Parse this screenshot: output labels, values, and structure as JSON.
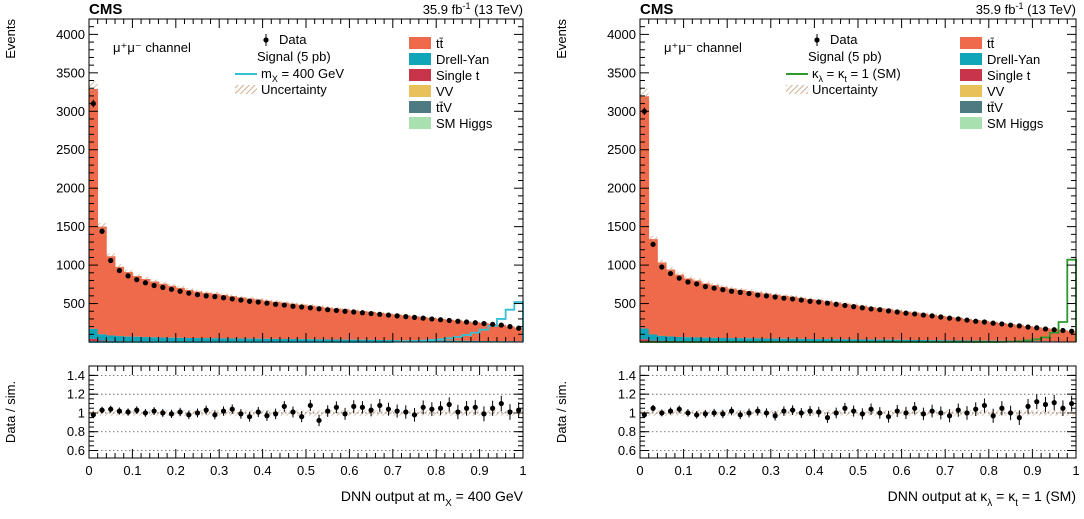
{
  "chart_data": [
    {
      "type": "bar",
      "subtype": "stacked-histogram-with-data-points-and-ratio-panel",
      "experiment": "CMS",
      "luminosity": "35.9 fb",
      "luminosity_sup": "-1",
      "energy": "(13 TeV)",
      "channel": "μ⁺μ⁻ channel",
      "ylabel": "Events",
      "ratio_ylabel": "Data / sim.",
      "xlabel": "DNN output at m",
      "xlabel_sub": "X",
      "xlabel_rest": " = 400 GeV",
      "xlim": [
        0,
        1
      ],
      "ylim": [
        0,
        4200
      ],
      "ratio_ylim": [
        0.52,
        1.5
      ],
      "y_ticks": [
        500,
        1000,
        1500,
        2000,
        2500,
        3000,
        3500,
        4000
      ],
      "ratio_ticks": [
        "0.6",
        "0.8",
        "1",
        "1.2",
        "1.4"
      ],
      "x_ticks": [
        "0",
        "0.1",
        "0.2",
        "0.3",
        "0.4",
        "0.5",
        "0.6",
        "0.7",
        "0.8",
        "0.9",
        "1"
      ],
      "legend": {
        "data": "Data",
        "signal_title": "Signal (5 pb)",
        "signal_label": "m",
        "signal_sub": "X",
        "signal_rest": " = 400 GeV",
        "uncertainty": "Uncertainty",
        "processes": [
          "tt̄",
          "Drell-Yan",
          "Single t",
          "VV",
          "tt̄V",
          "SM Higgs"
        ]
      },
      "colors": {
        "ttbar": "#ee6a4a",
        "dy": "#10a5b8",
        "single_t": "#c8354a",
        "vv": "#e8c15a",
        "ttv": "#4e7a82",
        "higgs": "#a8e0b0",
        "signal": "#36c0d4",
        "uncertainty": "#c79a74"
      },
      "bins": 50,
      "data_values": [
        3100,
        1440,
        1060,
        930,
        860,
        810,
        770,
        735,
        710,
        685,
        660,
        635,
        615,
        600,
        590,
        575,
        560,
        545,
        530,
        520,
        505,
        490,
        480,
        465,
        455,
        445,
        432,
        420,
        410,
        400,
        390,
        380,
        370,
        360,
        350,
        340,
        330,
        320,
        310,
        300,
        290,
        280,
        270,
        260,
        250,
        240,
        230,
        220,
        200,
        180
      ],
      "ttbar_values": [
        3120,
        1400,
        1030,
        900,
        840,
        790,
        755,
        725,
        700,
        675,
        650,
        625,
        605,
        590,
        580,
        565,
        550,
        535,
        522,
        510,
        497,
        484,
        472,
        460,
        448,
        437,
        425,
        413,
        403,
        392,
        382,
        372,
        362,
        352,
        342,
        332,
        322,
        312,
        302,
        292,
        282,
        272,
        262,
        252,
        242,
        232,
        222,
        212,
        192,
        172
      ],
      "dy_values": [
        130,
        80,
        70,
        65,
        60,
        58,
        55,
        52,
        50,
        48,
        46,
        45,
        44,
        43,
        42,
        41,
        40,
        39,
        38,
        37,
        36,
        35,
        34,
        33,
        32,
        31,
        30,
        29,
        28,
        27,
        26,
        25,
        24,
        23,
        22,
        21,
        20,
        19,
        18,
        17,
        16,
        15,
        14,
        13,
        12,
        11,
        10,
        9,
        8,
        7
      ],
      "other_values": [
        40,
        20,
        15,
        12,
        10,
        10,
        9,
        9,
        8,
        8,
        8,
        7,
        7,
        7,
        7,
        6,
        6,
        6,
        6,
        6,
        5,
        5,
        5,
        5,
        5,
        5,
        4,
        4,
        4,
        4,
        4,
        4,
        4,
        3,
        3,
        3,
        3,
        3,
        3,
        3,
        3,
        3,
        3,
        2,
        2,
        2,
        2,
        2,
        2,
        2
      ],
      "signal_values": [
        0,
        0,
        0,
        0,
        0,
        0,
        0,
        0,
        0,
        0,
        0,
        0,
        0,
        0,
        0,
        0,
        0,
        0,
        0,
        0,
        0,
        0,
        0,
        0,
        0,
        0,
        0,
        0,
        0,
        0,
        0,
        0,
        0,
        0,
        0,
        5,
        8,
        12,
        18,
        25,
        35,
        48,
        65,
        90,
        120,
        160,
        210,
        300,
        420,
        520
      ],
      "ratio_values": [
        0.98,
        1.03,
        1.04,
        1.02,
        1.01,
        1.03,
        1.0,
        1.02,
        1.0,
        0.99,
        1.01,
        0.98,
        1.0,
        1.03,
        0.98,
        1.02,
        1.04,
        0.99,
        0.96,
        1.01,
        0.97,
        0.99,
        1.07,
        1.01,
        0.96,
        1.08,
        0.92,
        1.02,
        1.06,
        0.99,
        1.07,
        1.06,
        1.03,
        1.08,
        1.04,
        1.02,
        1.01,
        0.98,
        1.06,
        1.04,
        1.05,
        1.09,
        1.01,
        1.05,
        1.06,
        0.99,
        1.05,
        1.1,
        1.01,
        1.03
      ]
    },
    {
      "type": "bar",
      "subtype": "stacked-histogram-with-data-points-and-ratio-panel",
      "experiment": "CMS",
      "luminosity": "35.9 fb",
      "luminosity_sup": "-1",
      "energy": "(13 TeV)",
      "channel": "μ⁺μ⁻ channel",
      "ylabel": "Events",
      "ratio_ylabel": "Data / sim.",
      "xlabel": "DNN output at κ",
      "xlabel_sub": "λ",
      "xlabel_rest": " = κ",
      "xlabel_sub2": "t",
      "xlabel_end": " = 1 (SM)",
      "xlim": [
        0,
        1
      ],
      "ylim": [
        0,
        4200
      ],
      "ratio_ylim": [
        0.52,
        1.5
      ],
      "y_ticks": [
        500,
        1000,
        1500,
        2000,
        2500,
        3000,
        3500,
        4000
      ],
      "ratio_ticks": [
        "0.6",
        "0.8",
        "1",
        "1.2",
        "1.4"
      ],
      "x_ticks": [
        "0",
        "0.1",
        "0.2",
        "0.3",
        "0.4",
        "0.5",
        "0.6",
        "0.7",
        "0.8",
        "0.9",
        "1"
      ],
      "legend": {
        "data": "Data",
        "signal_title": "Signal (5 pb)",
        "signal_label": "κ",
        "signal_sub": "λ",
        "signal_rest": " = κ",
        "signal_sub2": "t",
        "signal_end": " = 1 (SM)",
        "uncertainty": "Uncertainty",
        "processes": [
          "tt̄",
          "Drell-Yan",
          "Single t",
          "VV",
          "tt̄V",
          "SM Higgs"
        ]
      },
      "colors": {
        "ttbar": "#ee6a4a",
        "dy": "#10a5b8",
        "single_t": "#c8354a",
        "vv": "#e8c15a",
        "ttv": "#4e7a82",
        "higgs": "#a8e0b0",
        "signal": "#2e9a2e",
        "uncertainty": "#c79a74"
      },
      "bins": 50,
      "data_values": [
        3000,
        1270,
        975,
        890,
        830,
        780,
        755,
        720,
        700,
        680,
        660,
        645,
        630,
        610,
        600,
        585,
        570,
        560,
        545,
        530,
        520,
        505,
        490,
        475,
        460,
        445,
        430,
        420,
        405,
        390,
        375,
        365,
        350,
        340,
        325,
        310,
        300,
        285,
        270,
        260,
        245,
        235,
        220,
        210,
        195,
        185,
        170,
        160,
        150,
        140
      ],
      "ttbar_values": [
        3020,
        1240,
        955,
        870,
        810,
        765,
        740,
        705,
        685,
        665,
        645,
        630,
        615,
        597,
        586,
        572,
        558,
        547,
        533,
        518,
        507,
        493,
        478,
        464,
        450,
        436,
        422,
        410,
        396,
        382,
        368,
        357,
        344,
        332,
        319,
        305,
        293,
        280,
        267,
        255,
        242,
        230,
        218,
        206,
        194,
        182,
        170,
        158,
        146,
        134
      ],
      "dy_values": [
        140,
        80,
        65,
        60,
        55,
        52,
        50,
        48,
        46,
        44,
        43,
        42,
        41,
        40,
        39,
        38,
        37,
        36,
        35,
        34,
        33,
        32,
        31,
        30,
        29,
        28,
        27,
        26,
        25,
        24,
        23,
        22,
        21,
        20,
        19,
        18,
        17,
        16,
        15,
        14,
        13,
        12,
        11,
        10,
        9,
        8,
        7,
        6,
        5,
        4
      ],
      "other_values": [
        35,
        18,
        14,
        12,
        10,
        9,
        9,
        8,
        8,
        8,
        7,
        7,
        7,
        7,
        6,
        6,
        6,
        6,
        6,
        5,
        5,
        5,
        5,
        5,
        5,
        5,
        4,
        4,
        4,
        4,
        4,
        4,
        4,
        3,
        3,
        3,
        3,
        3,
        3,
        3,
        3,
        3,
        3,
        2,
        2,
        2,
        2,
        2,
        2,
        2
      ],
      "signal_values": [
        0,
        0,
        0,
        0,
        0,
        0,
        0,
        0,
        0,
        0,
        0,
        0,
        0,
        0,
        0,
        0,
        0,
        0,
        0,
        0,
        0,
        0,
        0,
        0,
        0,
        0,
        0,
        0,
        0,
        0,
        0,
        0,
        0,
        0,
        0,
        0,
        0,
        0,
        0,
        0,
        0,
        2,
        5,
        10,
        20,
        35,
        60,
        120,
        260,
        1070
      ],
      "ratio_values": [
        0.98,
        1.05,
        1.0,
        1.02,
        1.04,
        1.0,
        0.98,
        0.99,
        1.0,
        0.99,
        1.02,
        0.98,
        1.0,
        1.02,
        1.0,
        0.97,
        1.02,
        1.03,
        1.0,
        1.02,
        1.01,
        0.95,
        1.0,
        1.05,
        1.02,
        0.99,
        1.04,
        1.0,
        0.96,
        1.02,
        1.0,
        1.05,
        0.99,
        1.02,
        1.0,
        0.97,
        1.03,
        1.0,
        1.04,
        1.08,
        0.97,
        1.05,
        1.0,
        0.95,
        1.07,
        1.12,
        1.09,
        1.11,
        1.05,
        1.1
      ]
    }
  ]
}
